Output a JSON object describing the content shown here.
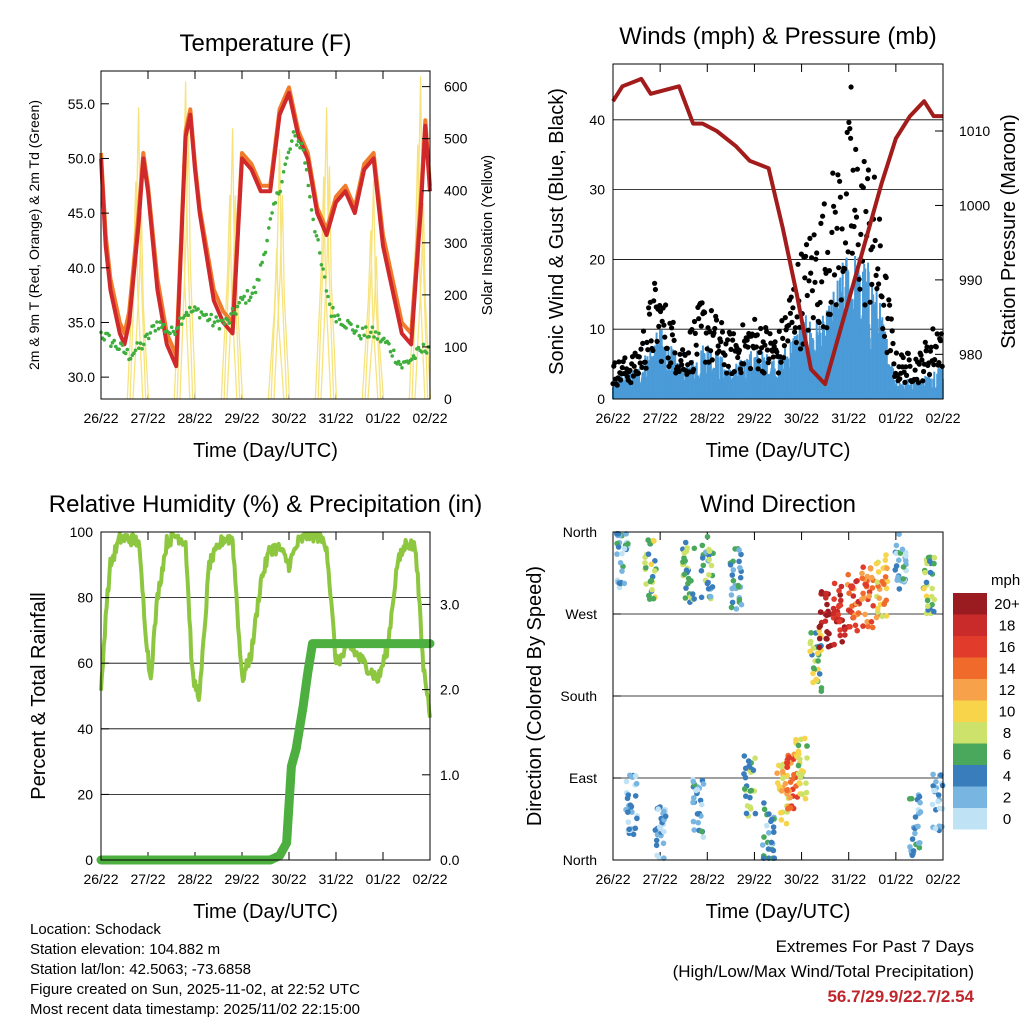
{
  "colors": {
    "temp_2m": "#d0292b",
    "temp_9m": "#f07b2a",
    "dewpoint": "#3fae3c",
    "solar": "#f7e37c",
    "wind": "#4a9bd8",
    "gust": "#000000",
    "pressure": "#a31c1c",
    "rh": "#8dc63f",
    "precip": "#4caf3f",
    "extremes": "#c0272d"
  },
  "chart_data": [
    {
      "id": "temperature",
      "type": "line",
      "title": "Temperature (F)",
      "xlabel": "Time (Day/UTC)",
      "ylabel": "2m & 9m T (Red, Orange) & 2m Td (Green)",
      "y2label": "Solar Insolation (Yellow)",
      "xticks": [
        "26/22",
        "27/22",
        "28/22",
        "29/22",
        "30/22",
        "31/22",
        "01/22",
        "02/22"
      ],
      "xlim": [
        0,
        7
      ],
      "ylim": [
        28,
        58
      ],
      "yticks": [
        30.0,
        35.0,
        40.0,
        45.0,
        50.0,
        55.0
      ],
      "y2lim": [
        0,
        630
      ],
      "y2ticks": [
        0,
        100,
        200,
        300,
        400,
        500,
        600
      ],
      "series": [
        {
          "name": "2m Temperature",
          "axis": "left",
          "x": [
            0,
            0.1,
            0.2,
            0.4,
            0.5,
            0.6,
            0.8,
            0.9,
            1.0,
            1.2,
            1.4,
            1.6,
            1.8,
            1.9,
            2.0,
            2.1,
            2.4,
            2.6,
            2.8,
            3.0,
            3.2,
            3.4,
            3.6,
            3.8,
            4.0,
            4.1,
            4.2,
            4.4,
            4.6,
            4.8,
            5.0,
            5.2,
            5.4,
            5.6,
            5.8,
            6.0,
            6.2,
            6.4,
            6.6,
            6.8,
            6.9,
            7.0
          ],
          "values": [
            50,
            42,
            38,
            34,
            33,
            35,
            44,
            50,
            47,
            38,
            33,
            31,
            52,
            54,
            49,
            45,
            37,
            35,
            34,
            50,
            49,
            47,
            47,
            54,
            56,
            54,
            52,
            50,
            45,
            43,
            46,
            47,
            45,
            49,
            50,
            42,
            38,
            34,
            33,
            45,
            53,
            47
          ]
        },
        {
          "name": "9m Temperature",
          "axis": "left",
          "x": [
            0,
            0.1,
            0.2,
            0.4,
            0.5,
            0.6,
            0.8,
            0.9,
            1.0,
            1.2,
            1.4,
            1.6,
            1.8,
            1.9,
            2.0,
            2.1,
            2.4,
            2.6,
            2.8,
            3.0,
            3.2,
            3.4,
            3.6,
            3.8,
            4.0,
            4.1,
            4.2,
            4.4,
            4.6,
            4.8,
            5.0,
            5.2,
            5.4,
            5.6,
            5.8,
            6.0,
            6.2,
            6.4,
            6.6,
            6.8,
            6.9,
            7.0
          ],
          "values": [
            50.5,
            43,
            39,
            35,
            34,
            36,
            45,
            50.5,
            47.5,
            39,
            34,
            32,
            52.5,
            54.5,
            49.5,
            45.5,
            38,
            36,
            35,
            50.5,
            49.5,
            47.5,
            47.5,
            54.5,
            56.5,
            54.5,
            52.5,
            50.5,
            45.5,
            43.5,
            46.5,
            47.5,
            45.5,
            49.5,
            50.5,
            43,
            39,
            35,
            34,
            46,
            53.5,
            47.5
          ]
        },
        {
          "name": "2m Dewpoint",
          "axis": "left",
          "x": [
            0,
            0.3,
            0.6,
            0.9,
            1.2,
            1.5,
            1.8,
            2.1,
            2.4,
            2.7,
            3.0,
            3.3,
            3.6,
            3.9,
            4.1,
            4.3,
            4.5,
            4.7,
            4.9,
            5.2,
            5.5,
            5.8,
            6.1,
            6.4,
            6.7,
            7.0
          ],
          "values": [
            34,
            33,
            32,
            33,
            35,
            34,
            36,
            36,
            35,
            35,
            37,
            38,
            44,
            49,
            52,
            51,
            45,
            40,
            36,
            35,
            34,
            34,
            33,
            31,
            32,
            33
          ]
        },
        {
          "name": "Solar Insolation",
          "axis": "right",
          "peaks_x": [
            0.8,
            1.8,
            2.8,
            3.8,
            4.8,
            5.8,
            6.8
          ],
          "peaks_values": [
            560,
            610,
            520,
            480,
            560,
            420,
            620
          ]
        }
      ]
    },
    {
      "id": "winds",
      "type": "scatter",
      "title": "Winds (mph) & Pressure (mb)",
      "xlabel": "Time (Day/UTC)",
      "ylabel": "Sonic Wind & Gust (Blue, Black)",
      "y2label": "Station Pressure (Maroon)",
      "xticks": [
        "26/22",
        "27/22",
        "28/22",
        "29/22",
        "30/22",
        "31/22",
        "01/22",
        "02/22"
      ],
      "xlim": [
        0,
        7
      ],
      "ylim": [
        0,
        48
      ],
      "yticks": [
        0,
        10,
        20,
        30,
        40
      ],
      "y2lim": [
        974,
        1019
      ],
      "y2ticks": [
        980,
        990,
        1000,
        1010
      ],
      "series": [
        {
          "name": "Wind",
          "axis": "left",
          "x": [
            0,
            0.5,
            1.0,
            1.5,
            2.0,
            2.5,
            3.0,
            3.5,
            4.0,
            4.5,
            5.0,
            5.5,
            6.0,
            6.5,
            7.0
          ],
          "values": [
            2,
            3,
            7,
            3,
            6,
            3,
            5,
            4,
            8,
            8,
            15,
            13,
            2,
            2,
            4
          ]
        },
        {
          "name": "Gust",
          "axis": "left",
          "x": [
            0,
            0.5,
            0.9,
            1.5,
            1.9,
            2.5,
            3.0,
            3.5,
            3.9,
            4.5,
            5.0,
            5.5,
            6.0,
            6.5,
            6.9
          ],
          "values": [
            4,
            5,
            13,
            6,
            11,
            7,
            9,
            7,
            15,
            22,
            30,
            26,
            5,
            5,
            9
          ]
        },
        {
          "name": "Station Pressure",
          "axis": "right",
          "x": [
            0,
            0.2,
            0.6,
            0.8,
            1.4,
            1.7,
            1.9,
            2.2,
            2.6,
            2.9,
            3.3,
            3.6,
            3.9,
            4.2,
            4.5,
            4.9,
            5.3,
            5.7,
            6.0,
            6.3,
            6.6,
            6.8,
            7.0
          ],
          "values": [
            1014,
            1016,
            1017,
            1015,
            1016,
            1011,
            1011,
            1010,
            1008,
            1006,
            1005,
            997,
            988,
            978,
            976,
            985,
            994,
            1003,
            1009,
            1012,
            1014,
            1012,
            1012
          ]
        }
      ]
    },
    {
      "id": "humidity",
      "type": "line",
      "title": "Relative Humidity (%) & Precipitation (in)",
      "xlabel": "Time (Day/UTC)",
      "ylabel": "Percent & Total Rainfall",
      "xticks": [
        "26/22",
        "27/22",
        "28/22",
        "29/22",
        "30/22",
        "31/22",
        "01/22",
        "02/22"
      ],
      "xlim": [
        0,
        7
      ],
      "ylim": [
        0,
        100
      ],
      "yticks": [
        0,
        20,
        40,
        60,
        80,
        100
      ],
      "y2lim": [
        0,
        3.85
      ],
      "y2ticks": [
        0.0,
        1.0,
        2.0,
        3.0
      ],
      "series": [
        {
          "name": "Relative Humidity",
          "axis": "left",
          "x": [
            0,
            0.1,
            0.2,
            0.4,
            0.6,
            0.8,
            0.95,
            1.05,
            1.2,
            1.4,
            1.6,
            1.8,
            1.95,
            2.1,
            2.3,
            2.6,
            2.8,
            3.0,
            3.2,
            3.4,
            3.6,
            3.8,
            4.0,
            4.2,
            4.4,
            4.6,
            4.8,
            5.0,
            5.3,
            5.6,
            5.9,
            6.1,
            6.3,
            6.5,
            6.7,
            6.85,
            7.0
          ],
          "values": [
            50,
            75,
            90,
            98,
            98,
            97,
            70,
            55,
            80,
            97,
            99,
            97,
            55,
            50,
            90,
            98,
            98,
            55,
            63,
            85,
            95,
            95,
            90,
            97,
            99,
            99,
            96,
            60,
            65,
            60,
            55,
            65,
            90,
            97,
            95,
            60,
            45
          ]
        },
        {
          "name": "Total Precipitation",
          "axis": "right",
          "x": [
            0,
            3.6,
            3.8,
            3.95,
            4.05,
            4.15,
            4.3,
            4.4,
            4.5,
            7.0
          ],
          "values": [
            0.0,
            0.0,
            0.05,
            0.2,
            1.1,
            1.3,
            1.8,
            2.2,
            2.54,
            2.54
          ]
        }
      ]
    },
    {
      "id": "direction",
      "type": "scatter",
      "title": "Wind Direction",
      "xlabel": "Time (Day/UTC)",
      "ylabel": "Direction (Colored By Speed)",
      "xticks": [
        "26/22",
        "27/22",
        "28/22",
        "29/22",
        "30/22",
        "31/22",
        "01/22",
        "02/22"
      ],
      "xlim": [
        0,
        7
      ],
      "yticks": [
        "North",
        "East",
        "South",
        "West",
        "North"
      ],
      "ylim": [
        0,
        360
      ],
      "colorbar": {
        "title": "mph",
        "labels": [
          "20+",
          "18",
          "16",
          "14",
          "12",
          "10",
          "8",
          "6",
          "4",
          "2",
          "0"
        ],
        "colors": [
          "#9b1c20",
          "#c92a2a",
          "#e03b2b",
          "#f06a2b",
          "#f7a24a",
          "#f7d44a",
          "#cde26b",
          "#4aa85d",
          "#3a7dbc",
          "#78b5e0",
          "#bfe3f5"
        ]
      },
      "series": [
        {
          "name": "Direction",
          "x": [
            0.2,
            0.4,
            0.8,
            1.0,
            1.6,
            1.8,
            2.0,
            2.6,
            2.9,
            3.3,
            3.6,
            3.8,
            4.0,
            4.3,
            4.5,
            4.8,
            5.1,
            5.4,
            5.7,
            6.1,
            6.4,
            6.7,
            6.9
          ],
          "values": [
            330,
            60,
            320,
            30,
            315,
            60,
            320,
            310,
            80,
            30,
            70,
            85,
            100,
            220,
            260,
            270,
            280,
            290,
            300,
            330,
            40,
            300,
            60
          ],
          "speeds": [
            3,
            2,
            7,
            2,
            6,
            3,
            5,
            4,
            6,
            3,
            10,
            14,
            8,
            7,
            20,
            18,
            15,
            14,
            11,
            3,
            3,
            7,
            2
          ]
        }
      ]
    }
  ],
  "info": {
    "location": "Location: Schodack",
    "elevation": "Station elevation: 104.882 m",
    "latlon": "Station lat/lon: 42.5063; -73.6858",
    "created": "Figure created on Sun, 2025-11-02, at 22:52 UTC",
    "recent": "Most recent data timestamp: 2025/11/02 22:15:00"
  },
  "extremes": {
    "heading": "Extremes For Past 7 Days",
    "subheading": "(High/Low/Max Wind/Total Precipitation)",
    "values": "56.7/29.9/22.7/2.54"
  }
}
